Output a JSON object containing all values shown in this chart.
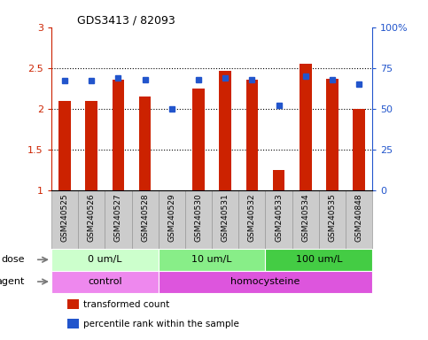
{
  "title": "GDS3413 / 82093",
  "samples": [
    "GSM240525",
    "GSM240526",
    "GSM240527",
    "GSM240528",
    "GSM240529",
    "GSM240530",
    "GSM240531",
    "GSM240532",
    "GSM240533",
    "GSM240534",
    "GSM240535",
    "GSM240848"
  ],
  "transformed_count": [
    2.09,
    2.09,
    2.35,
    2.15,
    1.0,
    2.25,
    2.46,
    2.35,
    1.25,
    2.55,
    2.37,
    2.0
  ],
  "percentile_rank": [
    67,
    67,
    69,
    68,
    50,
    68,
    69,
    68,
    52,
    70,
    68,
    65
  ],
  "bar_color": "#cc2200",
  "dot_color": "#2255cc",
  "ylim_left": [
    1.0,
    3.0
  ],
  "ylim_right": [
    0,
    100
  ],
  "yticks_left": [
    1.0,
    1.5,
    2.0,
    2.5,
    3.0
  ],
  "yticks_right": [
    0,
    25,
    50,
    75,
    100
  ],
  "dose_groups": [
    {
      "label": "0 um/L",
      "start": 0,
      "end": 3,
      "color": "#ccffcc"
    },
    {
      "label": "10 um/L",
      "start": 4,
      "end": 7,
      "color": "#88ee88"
    },
    {
      "label": "100 um/L",
      "start": 8,
      "end": 11,
      "color": "#44cc44"
    }
  ],
  "agent_groups": [
    {
      "label": "control",
      "start": 0,
      "end": 3,
      "color": "#ee88ee"
    },
    {
      "label": "homocysteine",
      "start": 4,
      "end": 11,
      "color": "#dd55dd"
    }
  ],
  "dose_label": "dose",
  "agent_label": "agent",
  "legend_items": [
    {
      "color": "#cc2200",
      "label": "transformed count"
    },
    {
      "color": "#2255cc",
      "label": "percentile rank within the sample"
    }
  ],
  "background_color": "#ffffff",
  "sample_label_bg": "#cccccc",
  "sample_label_border": "#999999"
}
